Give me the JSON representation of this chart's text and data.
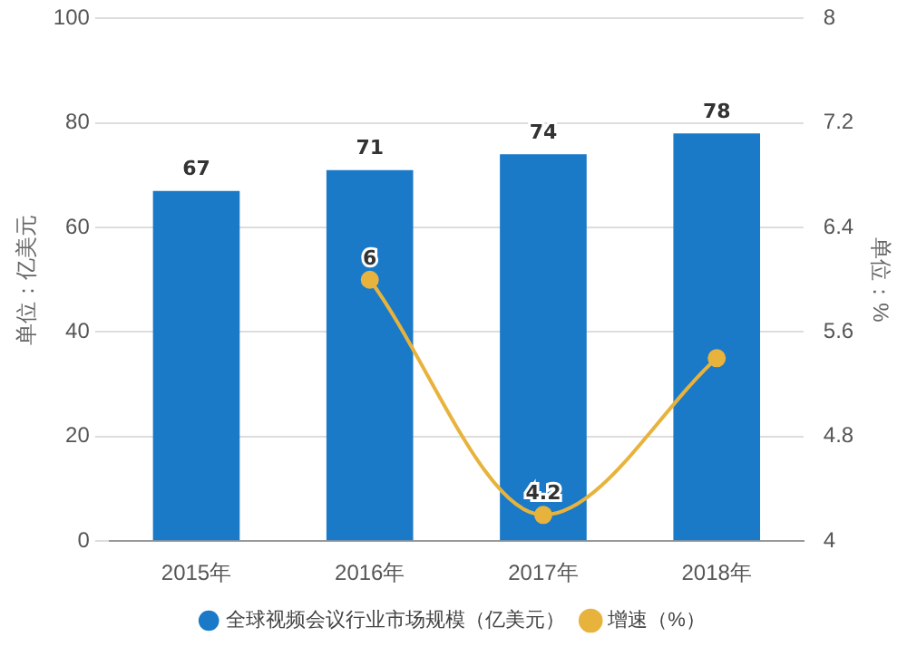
{
  "chart_data": {
    "type": "bar",
    "categories": [
      "2015年",
      "2016年",
      "2017年",
      "2018年"
    ],
    "ylabel": "单位：亿美元",
    "y2label": "单位：%",
    "series": [
      {
        "name": "全球视频会议行业市场规模（亿美元）",
        "color": "#1a7ac8",
        "values": [
          67,
          71,
          74,
          78
        ],
        "value_labels": [
          "67",
          "71",
          "74",
          "78"
        ]
      },
      {
        "name": "增速（%）",
        "type": "line",
        "axis": "y2",
        "color": "#e8b33c",
        "values": [
          null,
          6,
          4.2,
          5.4
        ],
        "value_labels": [
          null,
          "6",
          "4.2",
          null
        ]
      }
    ],
    "ylim": [
      0,
      100
    ],
    "yticks": [
      0,
      20,
      40,
      60,
      80,
      100
    ],
    "y2lim": [
      4,
      8
    ],
    "y2ticks": [
      4,
      4.8,
      5.6,
      6.4,
      7.2,
      8
    ],
    "grid": "y",
    "legend": "bottom",
    "marker": "circle",
    "line_style": "solid"
  }
}
